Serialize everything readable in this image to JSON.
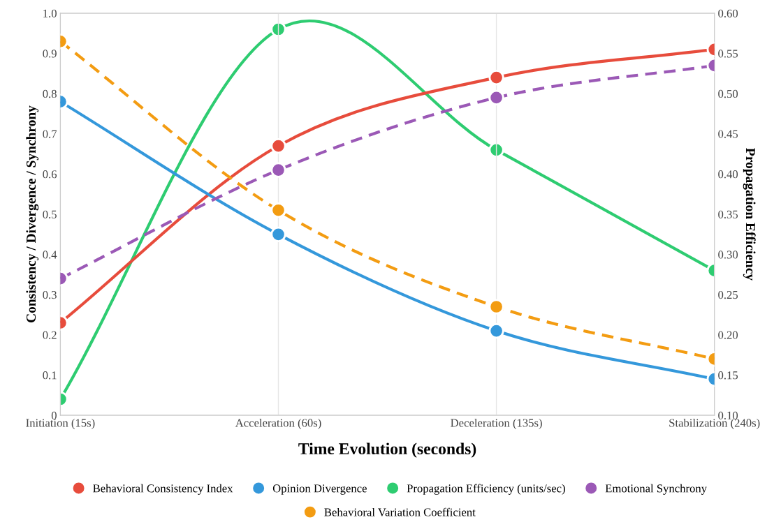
{
  "chart_data": {
    "type": "line",
    "xlabel": "Time Evolution (seconds)",
    "ylabel": "Consistency / Divergence / Synchrony",
    "y2label": "Propagation Efficiency",
    "categories": [
      "Initiation (15s)",
      "Acceleration (60s)",
      "Deceleration (135s)",
      "Stabilization (240s)"
    ],
    "series": [
      {
        "name": "Behavioral Consistency Index",
        "color": "#e74c3c",
        "values": [
          0.23,
          0.67,
          0.84,
          0.91
        ],
        "line_style": "solid"
      },
      {
        "name": "Opinion Divergence",
        "color": "#3498db",
        "values": [
          0.78,
          0.45,
          0.21,
          0.09
        ],
        "line_style": "solid"
      },
      {
        "name": "Propagation Efficiency (units/sec)",
        "color": "#2ecc71",
        "values": [
          0.12,
          0.58,
          0.43,
          0.28
        ],
        "axis": "y2",
        "line_style": "solid"
      },
      {
        "name": "Emotional Synchrony",
        "color": "#9b59b6",
        "values": [
          0.34,
          0.61,
          0.79,
          0.87
        ],
        "line_style": "dashed"
      },
      {
        "name": "Behavioral Variation Coefficient",
        "color": "#f39c12",
        "values": [
          0.93,
          0.51,
          0.27,
          0.14
        ],
        "line_style": "dashed"
      }
    ],
    "ylim": [
      0,
      1
    ],
    "yticks": [
      0,
      0.1,
      0.2,
      0.3,
      0.4,
      0.5,
      0.6,
      0.7,
      0.8,
      0.9,
      {
        "value": 1,
        "label": "1.0"
      }
    ],
    "y2lim": [
      0.1,
      0.6
    ],
    "y2ticks": [
      {
        "value": 0.1,
        "label": "0.10"
      },
      0.15,
      {
        "value": 0.2,
        "label": "0.20"
      },
      0.25,
      {
        "value": 0.3,
        "label": "0.30"
      },
      0.35,
      {
        "value": 0.4,
        "label": "0.40"
      },
      0.45,
      {
        "value": 0.5,
        "label": "0.50"
      },
      0.55,
      {
        "value": 0.6,
        "label": "0.60"
      }
    ],
    "grid": "x",
    "legend": "bottom",
    "marker": "circle"
  }
}
